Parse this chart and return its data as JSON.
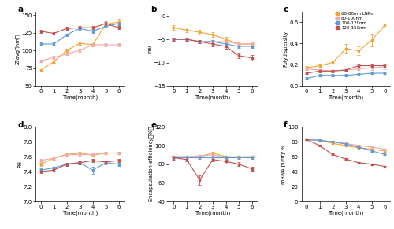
{
  "colors": {
    "orange": "#F4A336",
    "pink": "#F4A8A8",
    "blue": "#5B9BD5",
    "red": "#C0504D"
  },
  "legend_labels": [
    "60-80nm LNPs",
    "80-100nm",
    "100-120nm",
    "120-150nm"
  ],
  "time": [
    0,
    1,
    2,
    3,
    4,
    5,
    6
  ],
  "panel_a": {
    "title": "a",
    "ylabel": "Z-avg（nm）",
    "xlabel": "Time(month)",
    "ylim": [
      50,
      155
    ],
    "yticks": [
      50,
      75,
      100,
      125,
      150
    ],
    "orange": [
      72,
      84,
      100,
      110,
      108,
      137,
      140
    ],
    "pink": [
      85,
      90,
      95,
      100,
      108,
      108,
      108
    ],
    "blue": [
      109,
      109,
      122,
      131,
      127,
      134,
      138
    ],
    "red": [
      127,
      124,
      131,
      132,
      132,
      138,
      132
    ],
    "orange_err": [
      2,
      2,
      2,
      2,
      2,
      4,
      4
    ],
    "pink_err": [
      2,
      2,
      2,
      2,
      2,
      2,
      2
    ],
    "blue_err": [
      2,
      2,
      2,
      2,
      2,
      2,
      2
    ],
    "red_err": [
      2,
      2,
      2,
      2,
      2,
      2,
      2
    ]
  },
  "panel_b": {
    "title": "b",
    "ylabel": "mv",
    "xlabel": "Time(month)",
    "ylim": [
      -15,
      1
    ],
    "yticks": [
      -15,
      -10,
      -5,
      0
    ],
    "orange": [
      -2.5,
      -3.0,
      -3.5,
      -4.0,
      -5.0,
      -6.0,
      -6.0
    ],
    "pink": [
      -5.0,
      -5.0,
      -5.5,
      -5.5,
      -5.5,
      -6.0,
      -6.0
    ],
    "blue": [
      -5.0,
      -5.0,
      -5.5,
      -5.5,
      -6.0,
      -6.5,
      -6.5
    ],
    "red": [
      -5.0,
      -5.0,
      -5.5,
      -6.0,
      -6.5,
      -8.5,
      -9.0
    ],
    "orange_err": [
      0.5,
      0.5,
      0.5,
      0.5,
      0.5,
      0.5,
      0.5
    ],
    "pink_err": [
      0.4,
      0.4,
      0.4,
      0.4,
      0.4,
      0.4,
      0.4
    ],
    "blue_err": [
      0.4,
      0.4,
      0.4,
      0.4,
      0.4,
      0.4,
      0.4
    ],
    "red_err": [
      0.4,
      0.4,
      0.4,
      0.5,
      0.5,
      0.6,
      0.6
    ]
  },
  "panel_c": {
    "title": "c",
    "ylabel": "Polydispersity",
    "xlabel": "Time(month)",
    "ylim": [
      0.0,
      0.7
    ],
    "yticks": [
      0.0,
      0.2,
      0.4,
      0.6
    ],
    "orange": [
      0.17,
      0.19,
      0.22,
      0.35,
      0.33,
      0.43,
      0.57
    ],
    "pink": [
      0.16,
      0.15,
      0.14,
      0.15,
      0.16,
      0.17,
      0.18
    ],
    "blue": [
      0.07,
      0.1,
      0.1,
      0.1,
      0.11,
      0.12,
      0.12
    ],
    "red": [
      0.12,
      0.14,
      0.14,
      0.15,
      0.19,
      0.19,
      0.19
    ],
    "orange_err": [
      0.02,
      0.02,
      0.02,
      0.04,
      0.04,
      0.06,
      0.05
    ],
    "pink_err": [
      0.01,
      0.01,
      0.01,
      0.01,
      0.01,
      0.02,
      0.02
    ],
    "blue_err": [
      0.01,
      0.01,
      0.01,
      0.01,
      0.01,
      0.01,
      0.01
    ],
    "red_err": [
      0.01,
      0.01,
      0.01,
      0.01,
      0.02,
      0.02,
      0.02
    ]
  },
  "panel_d": {
    "title": "d",
    "ylabel": "PH",
    "xlabel": "Time(month)",
    "ylim": [
      7.0,
      8.0
    ],
    "yticks": [
      7.0,
      7.2,
      7.4,
      7.6,
      7.8,
      8.0
    ],
    "orange": [
      7.5,
      7.58,
      7.63,
      7.65,
      7.62,
      7.65,
      7.65
    ],
    "pink": [
      7.55,
      7.58,
      7.63,
      7.63,
      7.63,
      7.65,
      7.65
    ],
    "blue": [
      7.42,
      7.45,
      7.5,
      7.52,
      7.42,
      7.52,
      7.5
    ],
    "red": [
      7.4,
      7.42,
      7.5,
      7.52,
      7.55,
      7.53,
      7.55
    ],
    "orange_err": [
      0.02,
      0.02,
      0.02,
      0.02,
      0.02,
      0.02,
      0.02
    ],
    "pink_err": [
      0.02,
      0.02,
      0.02,
      0.02,
      0.02,
      0.02,
      0.02
    ],
    "blue_err": [
      0.02,
      0.02,
      0.02,
      0.02,
      0.05,
      0.02,
      0.02
    ],
    "red_err": [
      0.02,
      0.02,
      0.02,
      0.02,
      0.02,
      0.02,
      0.02
    ]
  },
  "panel_e": {
    "title": "e",
    "ylabel": "Encapsulation efficiency（%）",
    "xlabel": "Time(month)",
    "ylim": [
      40,
      120
    ],
    "yticks": [
      40,
      60,
      80,
      100,
      120
    ],
    "orange": [
      88,
      88,
      88,
      92,
      88,
      88,
      88
    ],
    "pink": [
      88,
      88,
      89,
      90,
      87,
      87,
      88
    ],
    "blue": [
      87,
      87,
      87,
      87,
      87,
      87,
      87
    ],
    "red": [
      87,
      85,
      63,
      85,
      83,
      80,
      75
    ],
    "orange_err": [
      1,
      1,
      1,
      1,
      1,
      1,
      1
    ],
    "pink_err": [
      1,
      1,
      1,
      1,
      1,
      1,
      1
    ],
    "blue_err": [
      1,
      1,
      1,
      1,
      1,
      1,
      1
    ],
    "red_err": [
      2,
      2,
      5,
      2,
      2,
      2,
      2
    ]
  },
  "panel_f": {
    "title": "f",
    "ylabel": "mRNA purity %",
    "xlabel": "Time(month)",
    "ylim": [
      0,
      100
    ],
    "yticks": [
      0,
      20,
      40,
      60,
      80,
      100
    ],
    "orange": [
      83,
      82,
      78,
      75,
      72,
      70,
      68
    ],
    "pink": [
      84,
      82,
      80,
      78,
      75,
      73,
      70
    ],
    "blue": [
      83,
      82,
      80,
      77,
      73,
      68,
      63
    ],
    "red": [
      83,
      75,
      63,
      57,
      52,
      50,
      47
    ],
    "orange_err": [
      1,
      1,
      1,
      1,
      1,
      1,
      1
    ],
    "pink_err": [
      1,
      1,
      1,
      1,
      1,
      1,
      1
    ],
    "blue_err": [
      1,
      1,
      1,
      1,
      1,
      1,
      1
    ],
    "red_err": [
      1,
      1,
      1,
      1,
      1,
      1,
      1
    ]
  }
}
